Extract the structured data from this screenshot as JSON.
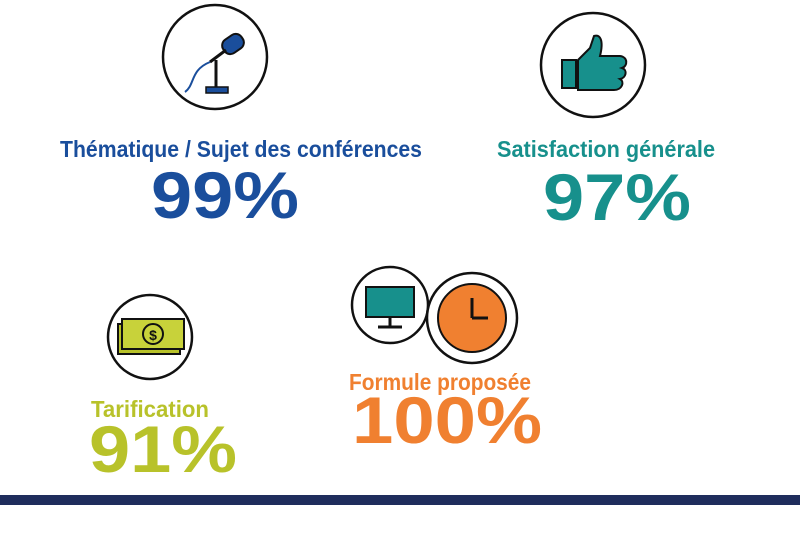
{
  "items": [
    {
      "label": "Thématique / Sujet des conférences",
      "value": "99%"
    },
    {
      "label": "Satisfaction générale",
      "value": "97%"
    },
    {
      "label": "Tarification",
      "value": "91%"
    },
    {
      "label": "Formule proposée",
      "value": "100%"
    }
  ]
}
